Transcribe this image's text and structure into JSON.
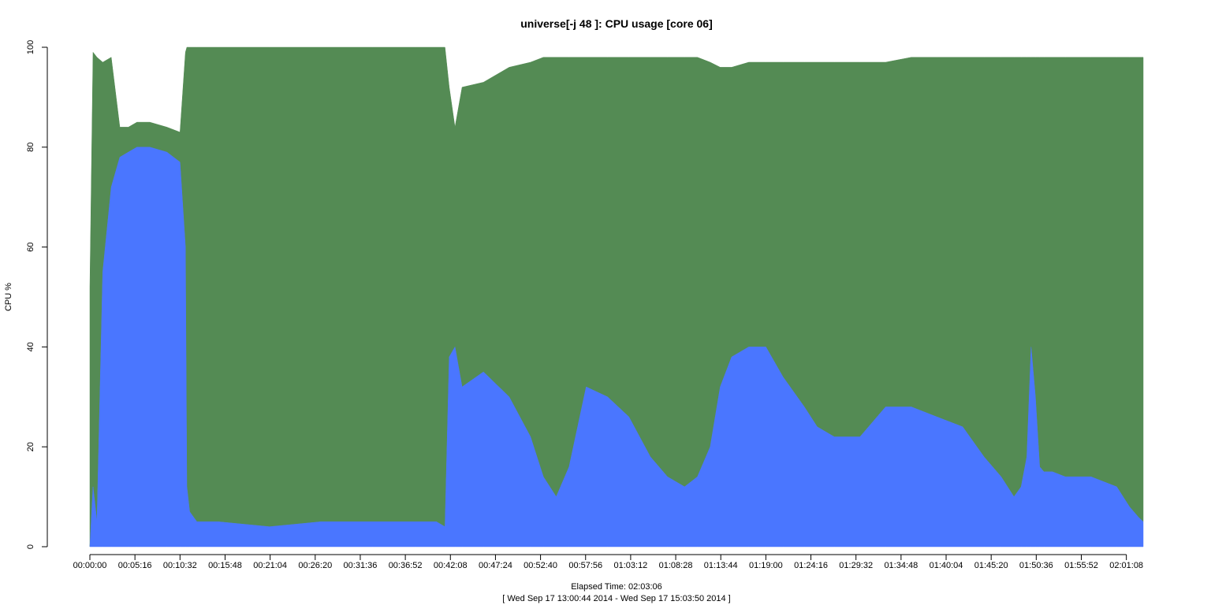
{
  "chart_data": {
    "type": "area",
    "title": "universe[-j 48  ]: CPU usage [core 06]",
    "ylabel": "CPU %",
    "xlabel": "Elapsed Time: 02:03:06",
    "subtitle": "[ Wed Sep 17 13:00:44 2014 - Wed Sep 17 15:03:50 2014 ]",
    "ylim": [
      0,
      100
    ],
    "yticks": [
      0,
      20,
      40,
      60,
      80,
      100
    ],
    "xlim_seconds": [
      0,
      7386
    ],
    "xticks": [
      "00:00:00",
      "00:05:16",
      "00:10:32",
      "00:15:48",
      "00:21:04",
      "00:26:20",
      "00:31:36",
      "00:36:52",
      "00:42:08",
      "00:47:24",
      "00:52:40",
      "00:57:56",
      "01:03:12",
      "01:08:28",
      "01:13:44",
      "01:19:00",
      "01:24:16",
      "01:29:32",
      "01:34:48",
      "01:40:04",
      "01:45:20",
      "01:50:36",
      "01:55:52",
      "02:01:08"
    ],
    "stacked": true,
    "colors": {
      "user": "#4a76ff",
      "system": "#548b54"
    },
    "x": [
      "00:00:00",
      "00:00:22",
      "00:00:50",
      "00:01:30",
      "00:02:30",
      "00:03:30",
      "00:04:30",
      "00:05:30",
      "00:07:00",
      "00:09:00",
      "00:10:32",
      "00:11:10",
      "00:11:20",
      "00:11:40",
      "00:12:30",
      "00:15:00",
      "00:21:00",
      "00:27:00",
      "00:33:00",
      "00:38:00",
      "00:40:30",
      "00:41:30",
      "00:42:00",
      "00:42:40",
      "00:43:30",
      "00:46:00",
      "00:49:00",
      "00:51:30",
      "00:53:00",
      "00:54:30",
      "00:56:00",
      "00:58:00",
      "01:00:30",
      "01:03:00",
      "01:05:30",
      "01:07:30",
      "01:09:30",
      "01:11:00",
      "01:12:30",
      "01:13:40",
      "01:15:00",
      "01:17:00",
      "01:19:00",
      "01:21:00",
      "01:23:30",
      "01:25:00",
      "01:27:00",
      "01:30:00",
      "01:33:00",
      "01:36:00",
      "01:39:00",
      "01:42:00",
      "01:44:30",
      "01:46:30",
      "01:48:00",
      "01:48:50",
      "01:49:30",
      "01:50:00",
      "01:50:30",
      "01:51:00",
      "01:51:30",
      "01:52:30",
      "01:54:00",
      "01:57:00",
      "02:00:00",
      "02:01:30",
      "02:02:30",
      "02:03:06"
    ],
    "series": [
      {
        "values": [
          0,
          12,
          5,
          55,
          72,
          78,
          79,
          80,
          80,
          79,
          77,
          60,
          12,
          7,
          5,
          5,
          4,
          5,
          5,
          5,
          5,
          4,
          38,
          40,
          32,
          35,
          30,
          22,
          14,
          10,
          16,
          32,
          30,
          26,
          18,
          14,
          12,
          14,
          20,
          32,
          38,
          40,
          40,
          34,
          28,
          24,
          22,
          22,
          28,
          28,
          26,
          24,
          18,
          14,
          10,
          12,
          18,
          40,
          30,
          16,
          15,
          15,
          14,
          14,
          12,
          8,
          6,
          5
        ]
      },
      {
        "values": [
          52,
          87,
          93,
          42,
          26,
          6,
          5,
          5,
          5,
          5,
          6,
          39,
          88,
          93,
          95,
          95,
          96,
          95,
          95,
          95,
          95,
          96,
          54,
          44,
          60,
          58,
          66,
          75,
          84,
          88,
          82,
          66,
          68,
          72,
          80,
          84,
          86,
          84,
          77,
          64,
          58,
          57,
          57,
          63,
          69,
          73,
          75,
          75,
          69,
          70,
          72,
          74,
          80,
          84,
          88,
          86,
          80,
          58,
          68,
          82,
          83,
          83,
          84,
          84,
          86,
          90,
          92,
          93
        ]
      }
    ]
  }
}
